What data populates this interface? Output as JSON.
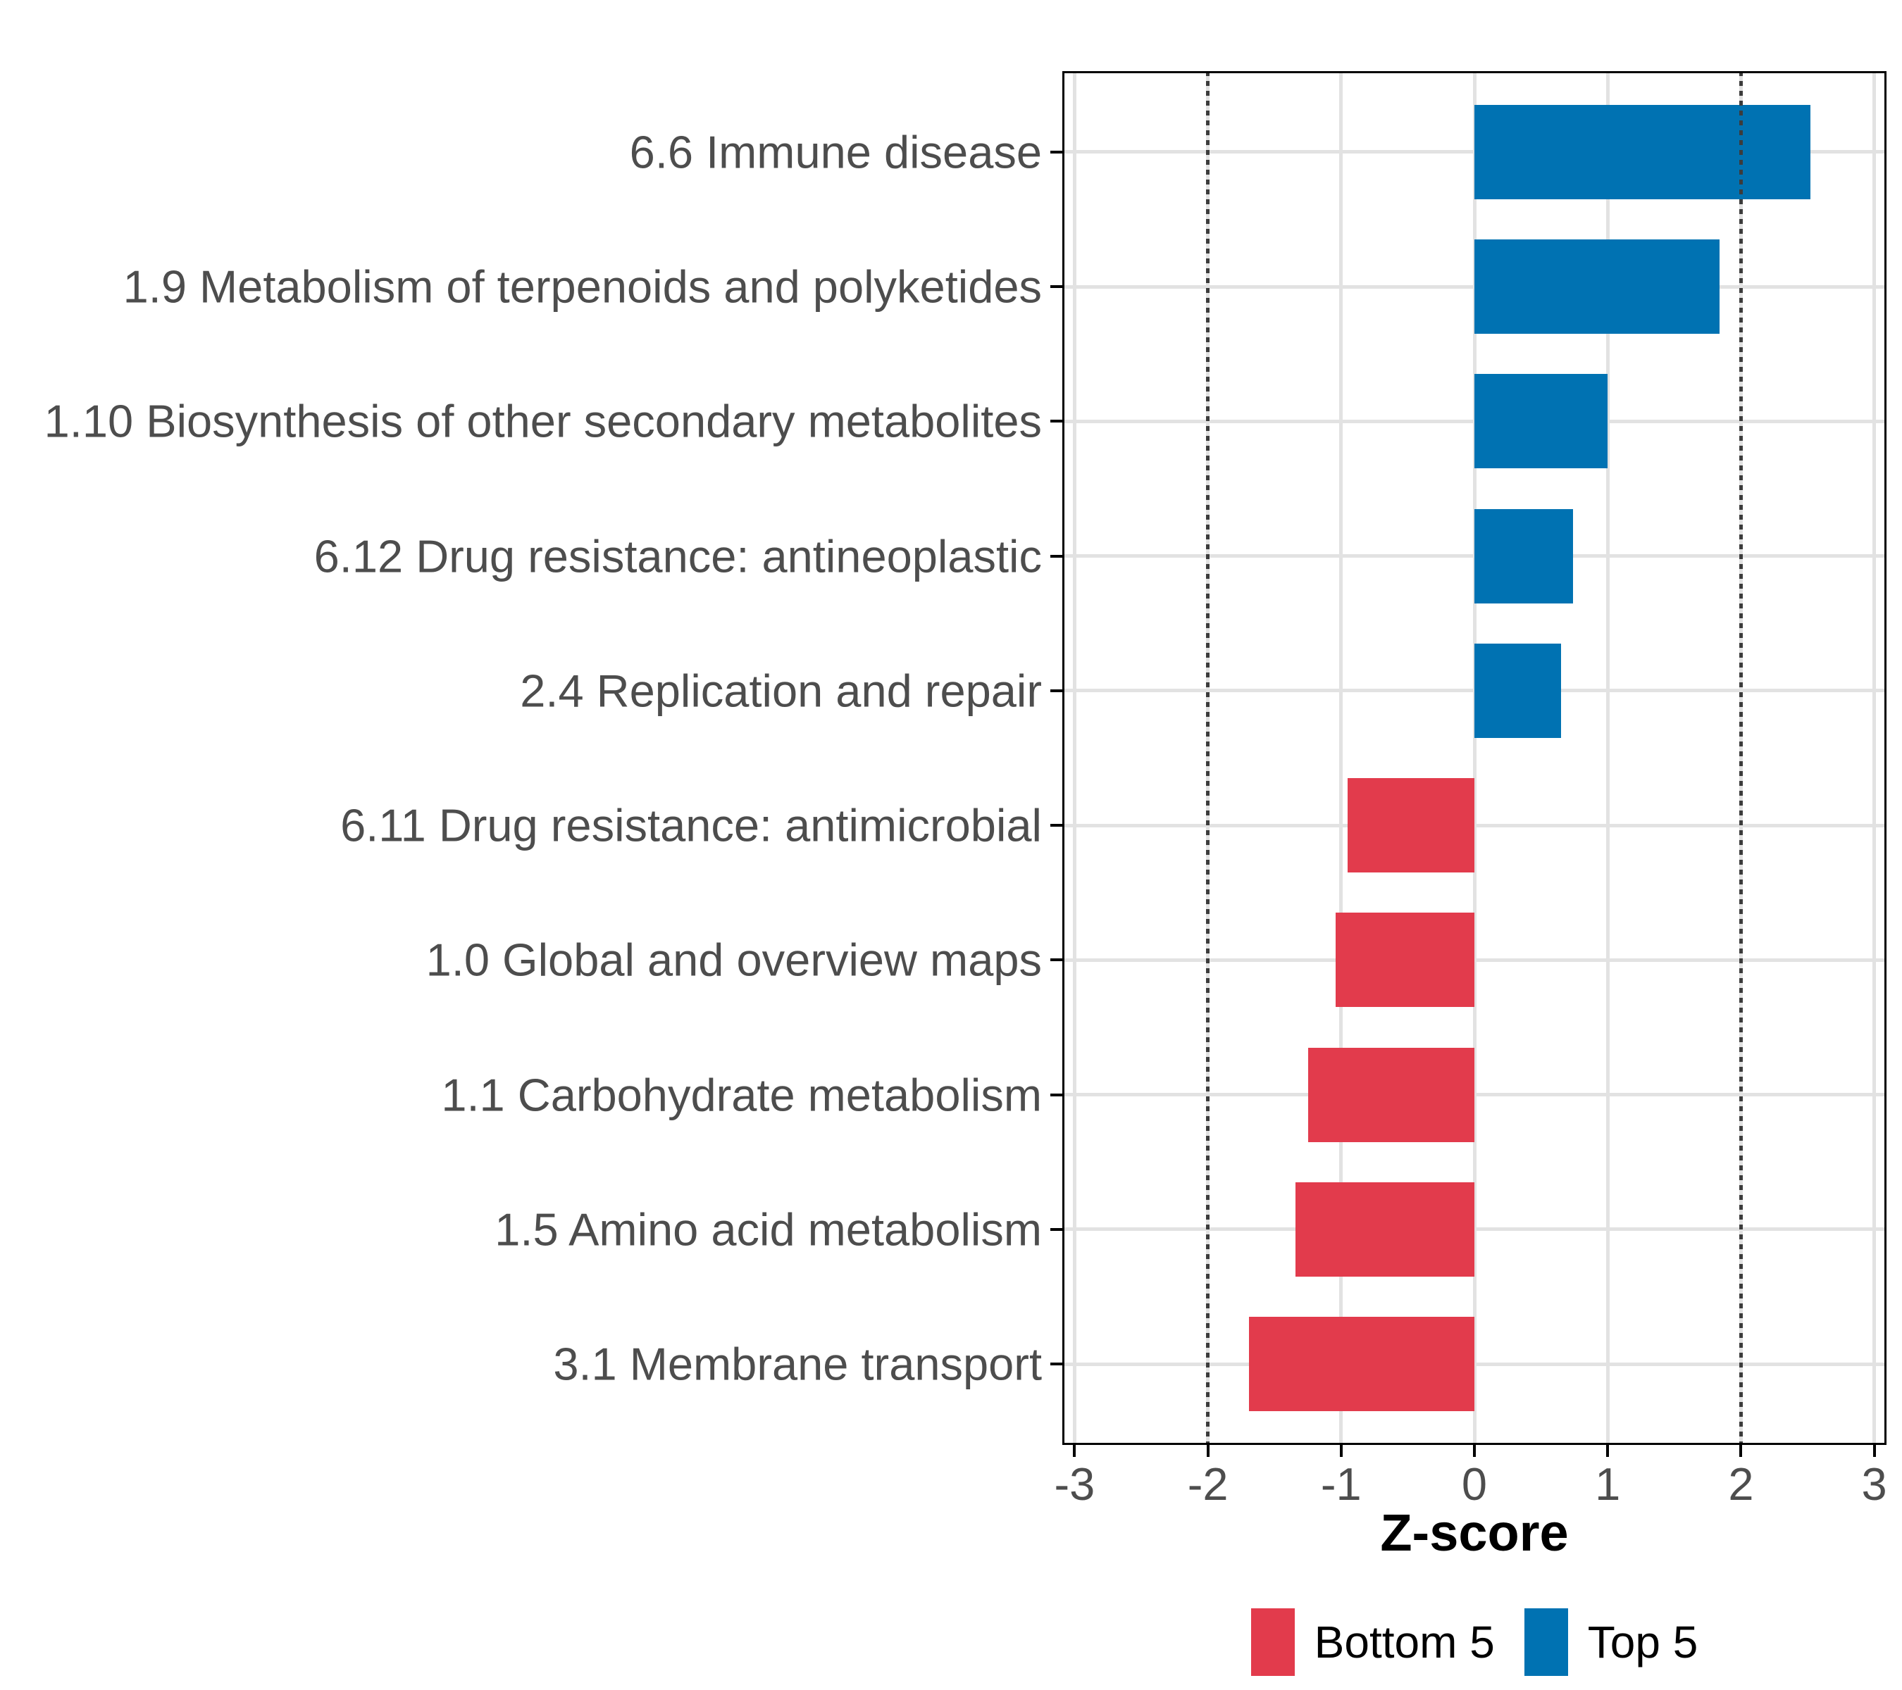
{
  "chart_data": {
    "type": "bar",
    "orientation": "horizontal",
    "title": "",
    "xlabel": "Z-score",
    "ylabel": "",
    "categories": [
      "6.6 Immune disease",
      "1.9 Metabolism of terpenoids and polyketides",
      "1.10 Biosynthesis of other secondary metabolites",
      "6.12 Drug resistance: antineoplastic",
      "2.4 Replication and repair",
      "6.11 Drug resistance: antimicrobial",
      "1.0 Global and overview maps",
      "1.1 Carbohydrate metabolism",
      "1.5 Amino acid metabolism",
      "3.1 Membrane transport"
    ],
    "values": [
      2.52,
      1.84,
      1.0,
      0.74,
      0.65,
      -0.95,
      -1.04,
      -1.25,
      -1.34,
      -1.69
    ],
    "groups": [
      "Top 5",
      "Top 5",
      "Top 5",
      "Top 5",
      "Top 5",
      "Bottom 5",
      "Bottom 5",
      "Bottom 5",
      "Bottom 5",
      "Bottom 5"
    ],
    "group_colors": {
      "Top 5": "#0072B2",
      "Bottom 5": "#E23B4C"
    },
    "xlim": [
      -3.09,
      3.09
    ],
    "xticks": [
      -3,
      -2,
      -1,
      0,
      1,
      2,
      3
    ],
    "xtick_labels": [
      "-3",
      "-2",
      "-1",
      "0",
      "1",
      "2",
      "3"
    ],
    "reference_lines": {
      "values": [
        -2,
        2
      ],
      "style": "dotted",
      "color": "#3C3C3C"
    },
    "grid": {
      "show": true,
      "color": "#E2E2E2"
    },
    "bar_width_fraction": 0.7,
    "legend": {
      "position": "bottom",
      "items": [
        {
          "label": "Bottom 5",
          "color": "#E23B4C"
        },
        {
          "label": "Top 5",
          "color": "#0072B2"
        }
      ]
    }
  },
  "style_colors": {
    "axis_text": "#4D4D4D",
    "grid": "#E2E2E2",
    "refline": "#3C3C3C",
    "panel_border": "#000000",
    "background": "#FFFFFF"
  }
}
